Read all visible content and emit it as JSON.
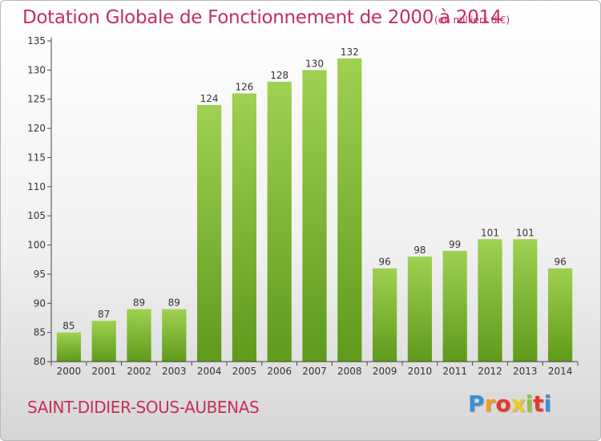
{
  "header": {
    "title": "Dotation Globale de Fonctionnement de 2000 à 2014",
    "unit_note": "(en milliers d'€)"
  },
  "footer": {
    "commune": "SAINT-DIDIER-SOUS-AUBENAS",
    "logo_letters": [
      "P",
      "r",
      "o",
      "x",
      "i",
      "t",
      "i"
    ],
    "logo_colors": [
      "#3a8fd6",
      "#f39c1f",
      "#e8372a",
      "#f2c81c",
      "#8dc63f",
      "#e8372a",
      "#3a8fd6"
    ]
  },
  "chart_data": {
    "type": "bar",
    "title": "Dotation Globale de Fonctionnement de 2000 à 2014",
    "subtitle": "(en milliers d'€)",
    "xlabel": "",
    "ylabel": "",
    "categories": [
      "2000",
      "2001",
      "2002",
      "2003",
      "2004",
      "2005",
      "2006",
      "2007",
      "2008",
      "2009",
      "2010",
      "2011",
      "2012",
      "2013",
      "2014"
    ],
    "values": [
      85,
      87,
      89,
      89,
      124,
      126,
      128,
      130,
      132,
      96,
      98,
      99,
      101,
      101,
      96
    ],
    "ylim": [
      80,
      135
    ],
    "yticks": [
      80,
      85,
      90,
      95,
      100,
      105,
      110,
      115,
      120,
      125,
      130,
      135
    ],
    "grid": false,
    "legend": "none",
    "colors": {
      "bar_top": "#9fd152",
      "bar_bottom": "#5f9a1a",
      "axis": "#444444",
      "text": "#333333"
    }
  }
}
